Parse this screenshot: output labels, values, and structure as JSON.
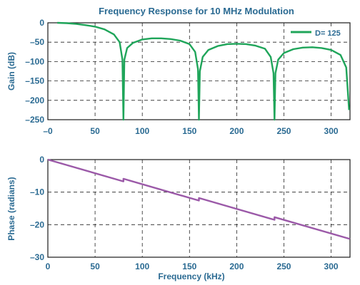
{
  "chart_data": [
    {
      "type": "line",
      "title": "Frequency Response for 10 MHz Modulation",
      "xlabel": "",
      "ylabel": "Gain (dB)",
      "xlim": [
        0,
        320
      ],
      "ylim": [
        -250,
        0
      ],
      "xticks": [
        0,
        50,
        100,
        150,
        200,
        250,
        300
      ],
      "xtick_labels": [
        "–0",
        "50",
        "100",
        "150",
        "200",
        "250",
        "300"
      ],
      "yticks": [
        0,
        -50,
        -100,
        -150,
        -200,
        -250
      ],
      "ytick_labels": [
        "0",
        "–50",
        "–100",
        "–150",
        "–200",
        "–250"
      ],
      "grid": true,
      "legend": "top-right",
      "series": [
        {
          "name": "D= 125",
          "color": "#1fa55a",
          "x": [
            10,
            20,
            30,
            40,
            50,
            60,
            70,
            76,
            79,
            80,
            81,
            84,
            90,
            100,
            110,
            120,
            130,
            140,
            150,
            156,
            159,
            160,
            161,
            164,
            170,
            180,
            190,
            200,
            210,
            220,
            230,
            236,
            239,
            240,
            241,
            244,
            250,
            260,
            270,
            280,
            290,
            300,
            310,
            316,
            319
          ],
          "y": [
            0,
            -1,
            -3,
            -6,
            -10,
            -17,
            -30,
            -50,
            -95,
            -250,
            -95,
            -65,
            -52,
            -43,
            -40,
            -40,
            -42,
            -46,
            -55,
            -75,
            -120,
            -250,
            -125,
            -88,
            -70,
            -60,
            -55,
            -54,
            -55,
            -59,
            -67,
            -88,
            -130,
            -250,
            -130,
            -95,
            -78,
            -68,
            -64,
            -63,
            -65,
            -70,
            -83,
            -115,
            -225
          ]
        }
      ]
    },
    {
      "type": "line",
      "title": "",
      "xlabel": "Frequency (kHz)",
      "ylabel": "Phase (radians)",
      "xlim": [
        0,
        320
      ],
      "ylim": [
        -30,
        0
      ],
      "xticks": [
        0,
        50,
        100,
        150,
        200,
        250,
        300
      ],
      "xtick_labels": [
        "0",
        "50",
        "100",
        "150",
        "200",
        "250",
        "300"
      ],
      "yticks": [
        0,
        -10,
        -20,
        -30
      ],
      "ytick_labels": [
        "0",
        "–10",
        "–20",
        "–30"
      ],
      "grid": true,
      "series": [
        {
          "color": "#9b59a8",
          "x": [
            0,
            80,
            80,
            160,
            160,
            240,
            240,
            320
          ],
          "y": [
            0,
            -6.7,
            -5.9,
            -12.6,
            -11.8,
            -18.5,
            -17.7,
            -24.4
          ]
        }
      ]
    }
  ]
}
